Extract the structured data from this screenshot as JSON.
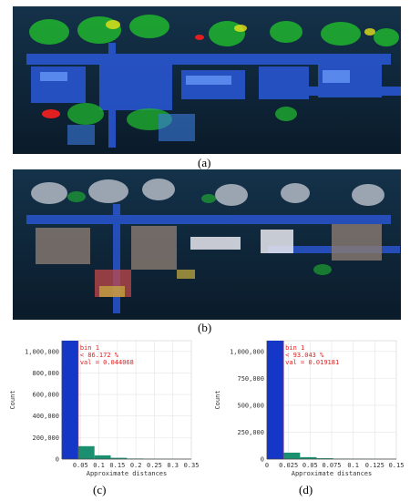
{
  "captions": {
    "a": "(a)",
    "b": "(b)",
    "c": "(c)",
    "d": "(d)"
  },
  "colors": {
    "background": "#0e2234",
    "highlight_bar": "#1537c8",
    "bar": "#1a9070",
    "marker": "#e02020"
  },
  "chart_data": [
    {
      "type": "bar",
      "xlabel": "Approximate distances",
      "ylabel": "Count",
      "xlim": [
        0,
        0.35
      ],
      "ylim": [
        0,
        1100000
      ],
      "xticks": [
        0.05,
        0.1,
        0.15,
        0.2,
        0.25,
        0.3,
        0.35
      ],
      "xtick_labels": [
        "0.05",
        "0.1",
        "0.15",
        "0.2",
        "0.25",
        "0.3",
        "0.35"
      ],
      "yticks": [
        0,
        200000,
        400000,
        600000,
        800000,
        1000000
      ],
      "ytick_labels": [
        "0",
        "200,000",
        "400,000",
        "600,000",
        "800,000",
        "1,000,000"
      ],
      "bin_width": 0.044,
      "bins": [
        {
          "x0": 0.0,
          "count": 1100000
        },
        {
          "x0": 0.044,
          "count": 120000
        },
        {
          "x0": 0.088,
          "count": 35000
        },
        {
          "x0": 0.132,
          "count": 12000
        },
        {
          "x0": 0.176,
          "count": 5000
        },
        {
          "x0": 0.22,
          "count": 2500
        },
        {
          "x0": 0.264,
          "count": 1500
        },
        {
          "x0": 0.308,
          "count": 1000
        }
      ],
      "marker_x": 0.044,
      "info_lines": [
        "bin 1",
        "< 86.172 %",
        "val = 0.044068"
      ]
    },
    {
      "type": "bar",
      "xlabel": "Approximate distances",
      "ylabel": "Count",
      "xlim": [
        0,
        0.15
      ],
      "ylim": [
        0,
        1100000
      ],
      "xticks": [
        0,
        0.025,
        0.05,
        0.075,
        0.1,
        0.125,
        0.15
      ],
      "xtick_labels": [
        "0",
        "0.025",
        "0.05",
        "0.075",
        "0.1",
        "0.125",
        "0.15"
      ],
      "yticks": [
        0,
        250000,
        500000,
        750000,
        1000000
      ],
      "ytick_labels": [
        "0",
        "250,000",
        "500,000",
        "750,000",
        "1,000,000"
      ],
      "bin_width": 0.0192,
      "bins": [
        {
          "x0": 0.0,
          "count": 1100000
        },
        {
          "x0": 0.0192,
          "count": 60000
        },
        {
          "x0": 0.0384,
          "count": 18000
        },
        {
          "x0": 0.0576,
          "count": 8000
        },
        {
          "x0": 0.0768,
          "count": 4000
        },
        {
          "x0": 0.096,
          "count": 2500
        },
        {
          "x0": 0.1152,
          "count": 1500
        },
        {
          "x0": 0.1344,
          "count": 1000
        }
      ],
      "marker_x": 0.0192,
      "info_lines": [
        "bin 1",
        "< 93.043 %",
        "val = 0.019181"
      ]
    }
  ]
}
